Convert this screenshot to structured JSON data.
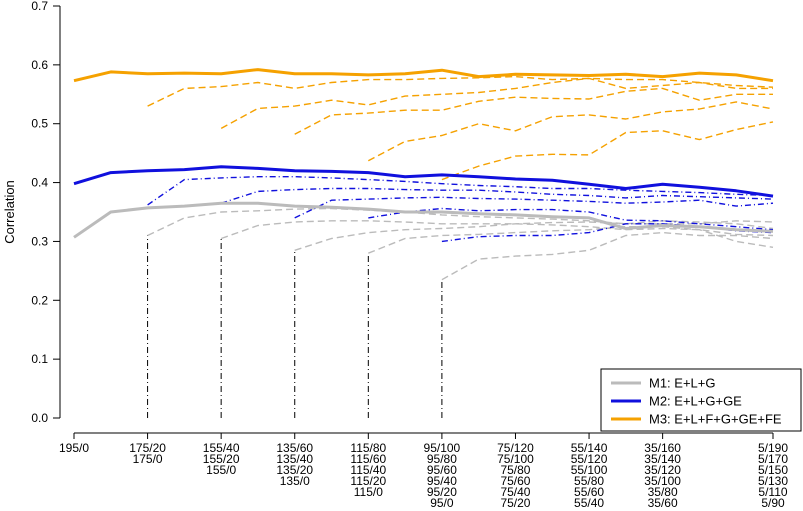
{
  "chart_data": {
    "type": "line",
    "ylabel": "Correlation",
    "xlabel": "",
    "ylim": [
      0,
      0.7
    ],
    "y_ticks": [
      "0.0",
      "0.1",
      "0.2",
      "0.3",
      "0.4",
      "0.5",
      "0.6",
      "0.7"
    ],
    "x_tick_labels": [
      [
        "195/0"
      ],
      [
        "175/20",
        "175/0"
      ],
      [
        "155/40",
        "155/20",
        "155/0"
      ],
      [
        "135/60",
        "135/40",
        "135/20",
        "135/0"
      ],
      [
        "115/80",
        "115/60",
        "115/40",
        "115/20",
        "115/0"
      ],
      [
        "95/100",
        "95/80",
        "95/60",
        "95/40",
        "95/20",
        "95/0"
      ],
      [
        "75/120",
        "75/100",
        "75/80",
        "75/60",
        "75/40",
        "75/20"
      ],
      [
        "55/140",
        "55/120",
        "55/100",
        "55/80",
        "55/60",
        "55/40"
      ],
      [
        "35/160",
        "35/140",
        "35/120",
        "35/100",
        "35/80",
        "35/60"
      ],
      [
        "5/190",
        "5/170",
        "5/150",
        "5/130",
        "5/110",
        "5/90"
      ]
    ],
    "x_tick_positions": [
      0,
      2,
      4,
      6,
      8,
      10,
      12,
      14,
      16,
      19
    ],
    "x_range": [
      0,
      19
    ],
    "colors": {
      "M1": "#bbbbbb",
      "M2": "#1010dd",
      "M3": "#f5a100"
    },
    "legend": {
      "position": "bottom-right",
      "entries": [
        {
          "key": "M1",
          "label": "M1: E+L+G"
        },
        {
          "key": "M2",
          "label": "M2: E+L+G+GE"
        },
        {
          "key": "M3",
          "label": "M3: E+L+F+G+GE+FE"
        }
      ]
    },
    "vertical_markers": [
      {
        "x": 2,
        "y_top": 0.31
      },
      {
        "x": 4,
        "y_top": 0.305
      },
      {
        "x": 6,
        "y_top": 0.285
      },
      {
        "x": 8,
        "y_top": 0.28
      },
      {
        "x": 10,
        "y_top": 0.235
      }
    ],
    "series": [
      {
        "model": "M1",
        "style": "solid",
        "x": [
          0,
          1,
          2,
          3,
          4,
          5,
          6,
          7,
          8,
          9,
          10,
          11,
          12,
          13,
          14,
          15,
          16,
          17,
          18,
          19
        ],
        "values": [
          0.307,
          0.35,
          0.357,
          0.36,
          0.365,
          0.365,
          0.36,
          0.358,
          0.355,
          0.35,
          0.35,
          0.347,
          0.345,
          0.342,
          0.34,
          0.322,
          0.327,
          0.325,
          0.32,
          0.317
        ]
      },
      {
        "model": "M1",
        "style": "dashed",
        "x": [
          2,
          3,
          4,
          5,
          6,
          7,
          8,
          9,
          10,
          11,
          12,
          13,
          14,
          15,
          16,
          17,
          18,
          19
        ],
        "values": [
          0.31,
          0.34,
          0.35,
          0.352,
          0.355,
          0.356,
          0.353,
          0.35,
          0.345,
          0.342,
          0.34,
          0.338,
          0.335,
          0.33,
          0.335,
          0.333,
          0.33,
          0.322
        ]
      },
      {
        "model": "M1",
        "style": "dashed",
        "x": [
          4,
          5,
          6,
          7,
          8,
          9,
          10,
          11,
          12,
          13,
          14,
          15,
          16,
          17,
          18,
          19
        ],
        "values": [
          0.305,
          0.327,
          0.333,
          0.335,
          0.335,
          0.333,
          0.33,
          0.33,
          0.33,
          0.328,
          0.325,
          0.32,
          0.322,
          0.32,
          0.312,
          0.31
        ]
      },
      {
        "model": "M1",
        "style": "dashed",
        "x": [
          6,
          7,
          8,
          9,
          10,
          11,
          12,
          13,
          14,
          15,
          16,
          17,
          18,
          19
        ],
        "values": [
          0.285,
          0.305,
          0.315,
          0.32,
          0.322,
          0.325,
          0.33,
          0.332,
          0.333,
          0.33,
          0.33,
          0.33,
          0.335,
          0.333
        ]
      },
      {
        "model": "M1",
        "style": "dashed",
        "x": [
          8,
          9,
          10,
          11,
          12,
          13,
          14,
          15,
          16,
          17,
          18,
          19
        ],
        "values": [
          0.28,
          0.305,
          0.31,
          0.312,
          0.315,
          0.318,
          0.32,
          0.325,
          0.325,
          0.32,
          0.3,
          0.29
        ]
      },
      {
        "model": "M1",
        "style": "dashed",
        "x": [
          10,
          11,
          12,
          13,
          14,
          15,
          16,
          17,
          18,
          19
        ],
        "values": [
          0.235,
          0.27,
          0.275,
          0.278,
          0.285,
          0.31,
          0.315,
          0.31,
          0.31,
          0.305
        ]
      },
      {
        "model": "M2",
        "style": "solid",
        "x": [
          0,
          1,
          2,
          3,
          4,
          5,
          6,
          7,
          8,
          9,
          10,
          11,
          12,
          13,
          14,
          15,
          16,
          17,
          18,
          19
        ],
        "values": [
          0.398,
          0.417,
          0.42,
          0.422,
          0.427,
          0.424,
          0.42,
          0.419,
          0.417,
          0.41,
          0.413,
          0.41,
          0.406,
          0.404,
          0.397,
          0.39,
          0.397,
          0.392,
          0.386,
          0.377
        ]
      },
      {
        "model": "M2",
        "style": "dashdot",
        "x": [
          2,
          3,
          4,
          5,
          6,
          7,
          8,
          9,
          10,
          11,
          12,
          13,
          14,
          15,
          16,
          17,
          18,
          19
        ],
        "values": [
          0.362,
          0.405,
          0.408,
          0.41,
          0.41,
          0.408,
          0.405,
          0.402,
          0.398,
          0.395,
          0.393,
          0.39,
          0.39,
          0.387,
          0.385,
          0.383,
          0.38,
          0.378
        ]
      },
      {
        "model": "M2",
        "style": "dashdot",
        "x": [
          4,
          5,
          6,
          7,
          8,
          9,
          10,
          11,
          12,
          13,
          14,
          15,
          16,
          17,
          18,
          19
        ],
        "values": [
          0.365,
          0.385,
          0.388,
          0.39,
          0.39,
          0.388,
          0.387,
          0.387,
          0.384,
          0.38,
          0.378,
          0.374,
          0.378,
          0.376,
          0.374,
          0.372
        ]
      },
      {
        "model": "M2",
        "style": "dashdot",
        "x": [
          6,
          7,
          8,
          9,
          10,
          11,
          12,
          13,
          14,
          15,
          16,
          17,
          18,
          19
        ],
        "values": [
          0.34,
          0.37,
          0.372,
          0.374,
          0.375,
          0.373,
          0.372,
          0.37,
          0.368,
          0.365,
          0.367,
          0.37,
          0.36,
          0.365
        ]
      },
      {
        "model": "M2",
        "style": "dashdot",
        "x": [
          8,
          9,
          10,
          11,
          12,
          13,
          14,
          15,
          16,
          17,
          18,
          19
        ],
        "values": [
          0.34,
          0.35,
          0.356,
          0.352,
          0.354,
          0.354,
          0.35,
          0.336,
          0.335,
          0.33,
          0.325,
          0.32
        ]
      },
      {
        "model": "M2",
        "style": "dashdot",
        "x": [
          10,
          11,
          12,
          13,
          14,
          15,
          16,
          17,
          18,
          19
        ],
        "values": [
          0.3,
          0.308,
          0.31,
          0.31,
          0.315,
          0.33,
          0.33,
          0.325,
          0.318,
          0.315
        ]
      },
      {
        "model": "M3",
        "style": "solid",
        "x": [
          0,
          1,
          2,
          3,
          4,
          5,
          6,
          7,
          8,
          9,
          10,
          11,
          12,
          13,
          14,
          15,
          16,
          17,
          18,
          19
        ],
        "values": [
          0.573,
          0.588,
          0.585,
          0.586,
          0.585,
          0.592,
          0.585,
          0.585,
          0.583,
          0.585,
          0.591,
          0.58,
          0.584,
          0.583,
          0.582,
          0.584,
          0.58,
          0.586,
          0.583,
          0.573
        ]
      },
      {
        "model": "M3",
        "style": "dashed",
        "x": [
          2,
          3,
          4,
          5,
          6,
          7,
          8,
          9,
          10,
          11,
          12,
          13,
          14,
          15,
          16,
          17,
          18,
          19
        ],
        "values": [
          0.53,
          0.56,
          0.563,
          0.57,
          0.56,
          0.57,
          0.575,
          0.575,
          0.577,
          0.578,
          0.58,
          0.575,
          0.577,
          0.575,
          0.575,
          0.57,
          0.565,
          0.562
        ]
      },
      {
        "model": "M3",
        "style": "dashed",
        "x": [
          4,
          5,
          6,
          7,
          8,
          9,
          10,
          11,
          12,
          13,
          14,
          15,
          16,
          17,
          18,
          19
        ],
        "values": [
          0.492,
          0.526,
          0.53,
          0.54,
          0.532,
          0.547,
          0.55,
          0.553,
          0.56,
          0.57,
          0.577,
          0.56,
          0.565,
          0.57,
          0.56,
          0.56
        ]
      },
      {
        "model": "M3",
        "style": "dashed",
        "x": [
          6,
          7,
          8,
          9,
          10,
          11,
          12,
          13,
          14,
          15,
          16,
          17,
          18,
          19
        ],
        "values": [
          0.482,
          0.515,
          0.518,
          0.523,
          0.523,
          0.538,
          0.545,
          0.543,
          0.542,
          0.555,
          0.56,
          0.54,
          0.55,
          0.55
        ]
      },
      {
        "model": "M3",
        "style": "dashed",
        "x": [
          8,
          9,
          10,
          11,
          12,
          13,
          14,
          15,
          16,
          17,
          18,
          19
        ],
        "values": [
          0.437,
          0.47,
          0.48,
          0.5,
          0.488,
          0.512,
          0.515,
          0.508,
          0.52,
          0.525,
          0.537,
          0.525
        ]
      },
      {
        "model": "M3",
        "style": "dashed",
        "x": [
          10,
          11,
          12,
          13,
          14,
          15,
          16,
          17,
          18,
          19
        ],
        "values": [
          0.405,
          0.428,
          0.445,
          0.448,
          0.447,
          0.485,
          0.488,
          0.473,
          0.49,
          0.503
        ]
      }
    ]
  }
}
